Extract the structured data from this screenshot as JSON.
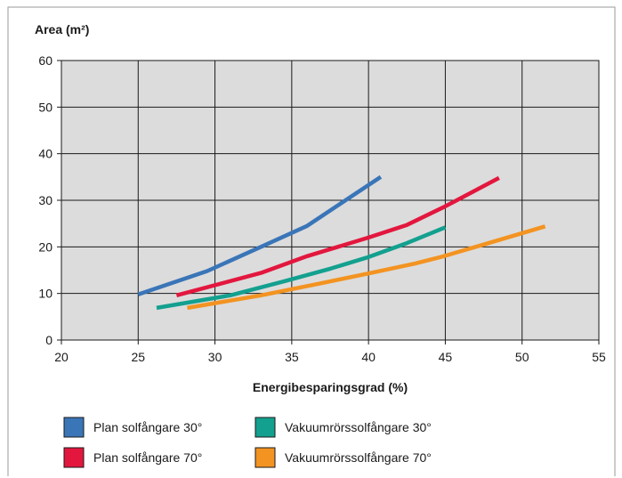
{
  "chart_data": {
    "type": "line",
    "ylabel": "Area (m²)",
    "xlabel": "Energibesparingsgrad (%)",
    "xlim": [
      20,
      55
    ],
    "ylim": [
      0,
      60
    ],
    "xticks": [
      20,
      25,
      30,
      35,
      40,
      45,
      50,
      55
    ],
    "yticks": [
      0,
      10,
      20,
      30,
      40,
      50,
      60
    ],
    "grid": true,
    "legend_position": "bottom",
    "series": [
      {
        "name": "Plan solfångare 30°",
        "color": "#3a75b8",
        "points": [
          [
            25,
            9.8
          ],
          [
            29.5,
            14.8
          ],
          [
            33,
            20
          ],
          [
            36,
            24.5
          ],
          [
            38.5,
            30
          ],
          [
            40.8,
            35
          ]
        ]
      },
      {
        "name": "Plan solfångare 70°",
        "color": "#e3173e",
        "points": [
          [
            27.5,
            9.6
          ],
          [
            33,
            14.4
          ],
          [
            36,
            18
          ],
          [
            40,
            22
          ],
          [
            42.5,
            24.7
          ],
          [
            45,
            28.7
          ],
          [
            48.5,
            34.8
          ]
        ]
      },
      {
        "name": "Vakuumrörssolfångare 30°",
        "color": "#13a08f",
        "points": [
          [
            26.2,
            6.9
          ],
          [
            31,
            9.6
          ],
          [
            34.5,
            12.6
          ],
          [
            37.5,
            15.3
          ],
          [
            40,
            17.8
          ],
          [
            42.5,
            20.8
          ],
          [
            45,
            24.2
          ]
        ]
      },
      {
        "name": "Vakuumrörssolfångare 70°",
        "color": "#f39321",
        "points": [
          [
            28.2,
            6.9
          ],
          [
            33,
            9.6
          ],
          [
            36.5,
            11.9
          ],
          [
            40,
            14.3
          ],
          [
            43,
            16.4
          ],
          [
            44.8,
            17.9
          ],
          [
            47.5,
            20.5
          ],
          [
            51.5,
            24.4
          ]
        ]
      }
    ]
  }
}
